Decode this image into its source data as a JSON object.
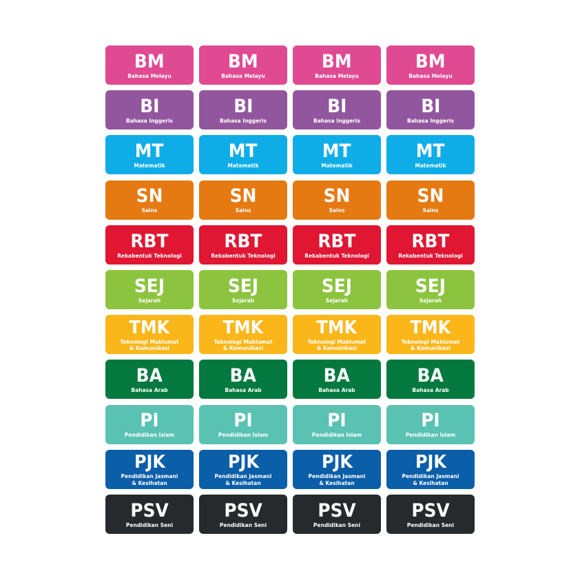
{
  "copies_per_row": 4,
  "labels": [
    {
      "code": "BM",
      "name": "Bahasa Melayu",
      "color": "#e04a92"
    },
    {
      "code": "BI",
      "name": "Bahasa Inggeris",
      "color": "#92569f"
    },
    {
      "code": "MT",
      "name": "Matematik",
      "color": "#0fade8"
    },
    {
      "code": "SN",
      "name": "Sains",
      "color": "#e57a12"
    },
    {
      "code": "RBT",
      "name": "Rekabentuk Teknologi",
      "color": "#e01632"
    },
    {
      "code": "SEJ",
      "name": "Sejarah",
      "color": "#8cc43f"
    },
    {
      "code": "TMK",
      "name": "Teknologi Maklumat\n& Komunikasi",
      "color": "#fbb61a"
    },
    {
      "code": "BA",
      "name": "Bahasa Arab",
      "color": "#03793f"
    },
    {
      "code": "PI",
      "name": "Pendidikan Islam",
      "color": "#5ac2b2"
    },
    {
      "code": "PJK",
      "name": "Pendidikan Jasmani\n& Kesihatan",
      "color": "#0b5ea8"
    },
    {
      "code": "PSV",
      "name": "Pendidikan Seni",
      "color": "#262a2c"
    }
  ]
}
